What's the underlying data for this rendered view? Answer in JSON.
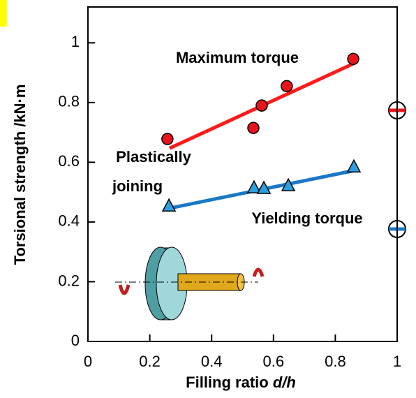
{
  "chart_data": {
    "type": "scatter",
    "xlabel": [
      "Filling ratio",
      "d/h"
    ],
    "ylabel": "Torsional strength /kN·m",
    "xlim": [
      0,
      1
    ],
    "ylim": [
      0,
      1.12
    ],
    "xticks": [
      0,
      0.2,
      0.4,
      0.6,
      0.8,
      1
    ],
    "yticks": [
      0,
      0.2,
      0.4,
      0.6,
      0.8,
      1
    ],
    "annotation": [
      "Plastically",
      "joining"
    ],
    "series": [
      {
        "name": "Maximum torque",
        "color": "#e8141b",
        "marker": "circle",
        "x": [
          0.257,
          0.535,
          0.562,
          0.643,
          0.858
        ],
        "values": [
          0.678,
          0.715,
          0.79,
          0.855,
          0.946
        ],
        "fit": {
          "color": "#ff1a1a",
          "x": [
            0.264,
            0.858
          ],
          "values": [
            0.647,
            0.93
          ]
        }
      },
      {
        "name": "Yielding torque",
        "color": "#2aa0e0",
        "marker": "triangle",
        "x": [
          0.262,
          0.537,
          0.569,
          0.648,
          0.86
        ],
        "values": [
          0.453,
          0.514,
          0.512,
          0.521,
          0.584
        ],
        "fit": {
          "color": "#1a78c6",
          "x": [
            0.264,
            0.86
          ],
          "values": [
            0.446,
            0.572
          ]
        }
      }
    ]
  }
}
